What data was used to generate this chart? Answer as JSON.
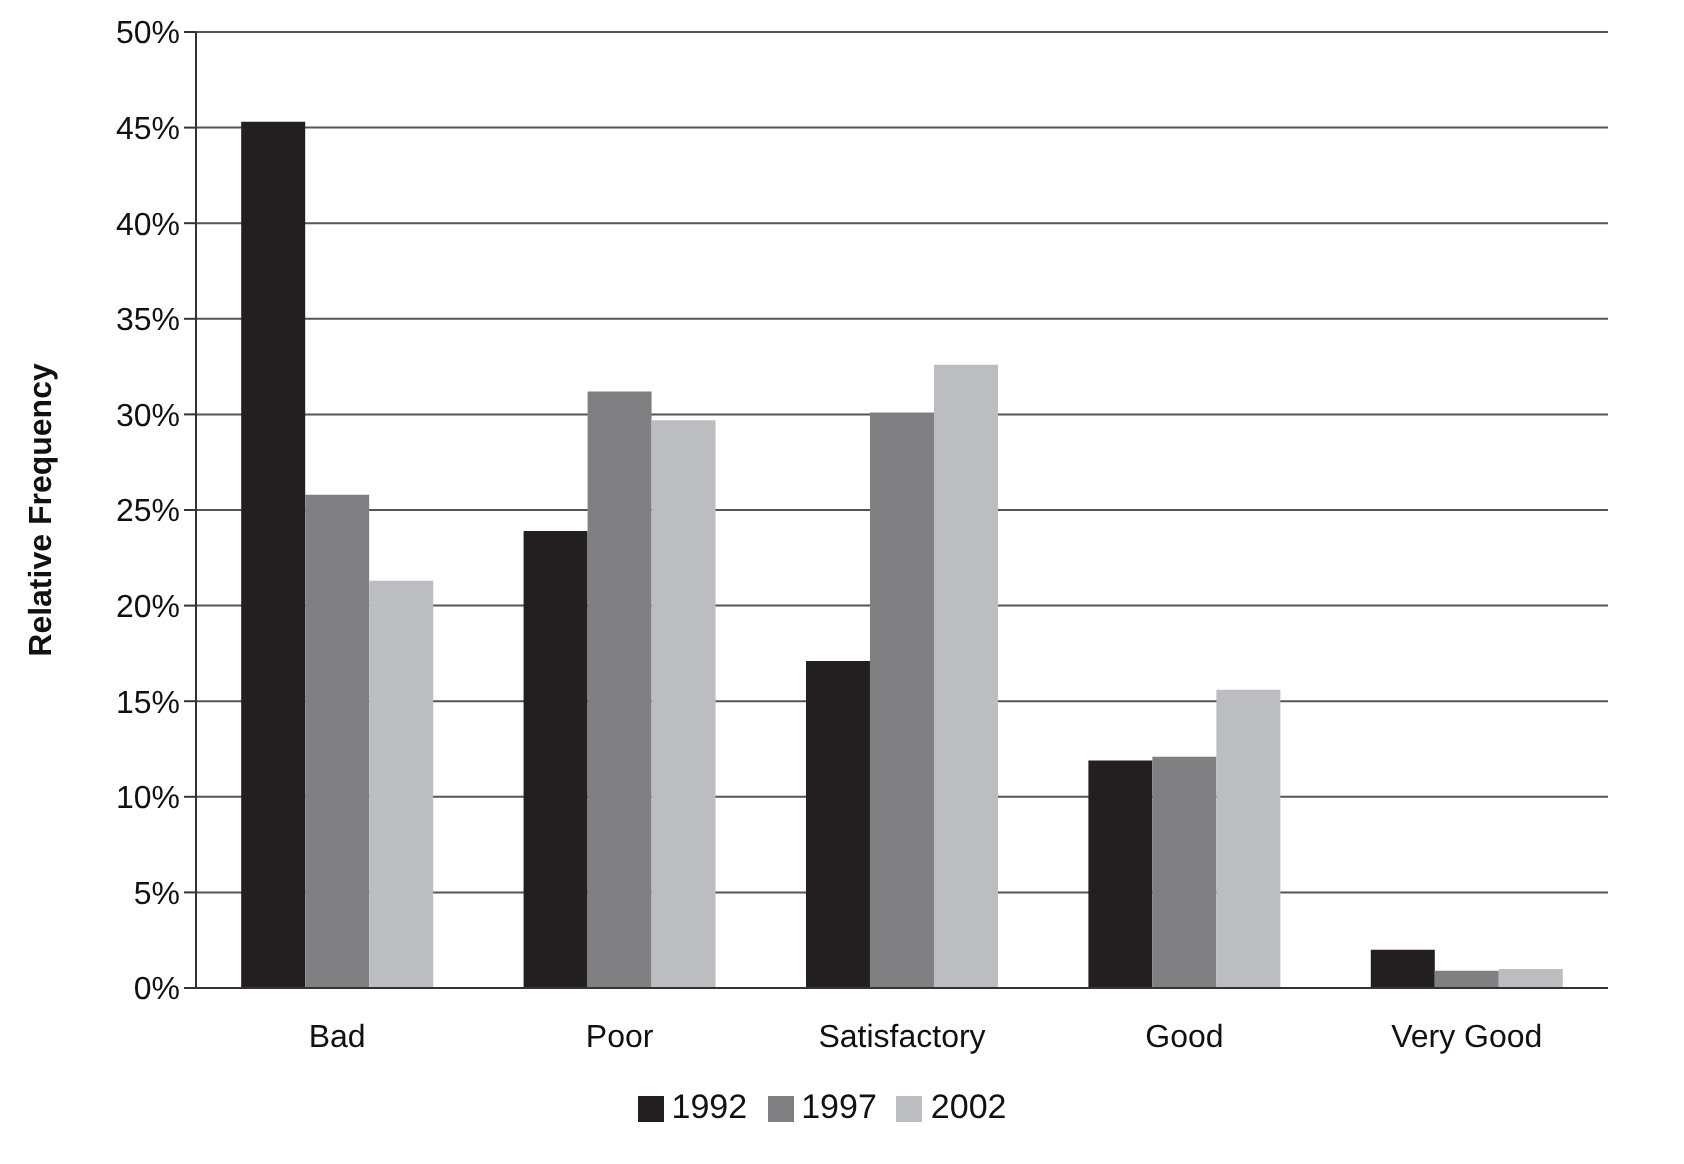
{
  "chart_data": {
    "type": "bar",
    "ylabel": "Relative Frequency",
    "categories": [
      "Bad",
      "Poor",
      "Satisfactory",
      "Good",
      "Very Good"
    ],
    "series": [
      {
        "name": "1992",
        "color": "#231f20",
        "values": [
          45.3,
          23.9,
          17.1,
          11.9,
          2.0
        ]
      },
      {
        "name": "1997",
        "color": "#808083",
        "values": [
          25.8,
          31.2,
          30.1,
          12.1,
          0.9
        ]
      },
      {
        "name": "2002",
        "color": "#bcbdc0",
        "values": [
          21.3,
          29.7,
          32.6,
          15.6,
          1.0
        ]
      }
    ],
    "ylim": [
      0,
      50
    ],
    "yticks": [
      {
        "value": 0,
        "label": "0%"
      },
      {
        "value": 5,
        "label": "5%"
      },
      {
        "value": 10,
        "label": "10%"
      },
      {
        "value": 15,
        "label": "15%"
      },
      {
        "value": 20,
        "label": "20%"
      },
      {
        "value": 25,
        "label": "25%"
      },
      {
        "value": 30,
        "label": "30%"
      },
      {
        "value": 35,
        "label": "35%"
      },
      {
        "value": 40,
        "label": "40%"
      },
      {
        "value": 45,
        "label": "45%"
      },
      {
        "value": 50,
        "label": "50%"
      }
    ],
    "grid": "y",
    "legend": "bottom"
  }
}
